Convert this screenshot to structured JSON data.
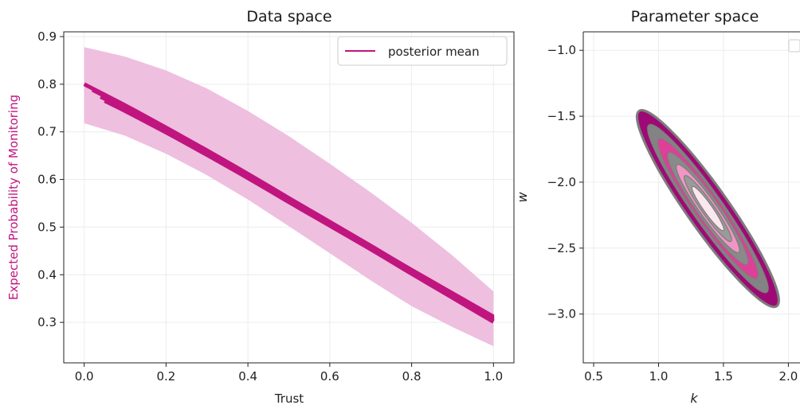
{
  "chart_data": [
    {
      "type": "line",
      "title": "Data space",
      "xlabel": "Trust",
      "ylabel": "Expected Probability of Monitoring",
      "xlim": [
        -0.05,
        1.05
      ],
      "ylim": [
        0.215,
        0.91
      ],
      "xticks": [
        "0.0",
        "0.2",
        "0.4",
        "0.6",
        "0.8",
        "1.0"
      ],
      "yticks": [
        "0.3",
        "0.4",
        "0.5",
        "0.6",
        "0.7",
        "0.8",
        "0.9"
      ],
      "grid": true,
      "legend": {
        "position": "top-right",
        "entries": [
          "posterior mean"
        ]
      },
      "colors": {
        "mean": "#c0157f",
        "band": "#eebfdf",
        "ylabel": "#c0157f"
      },
      "series": [
        {
          "name": "posterior mean",
          "x": [
            0.0,
            0.1,
            0.2,
            0.3,
            0.4,
            0.5,
            0.6,
            0.7,
            0.8,
            0.9,
            1.0
          ],
          "y": [
            0.8,
            0.756,
            0.709,
            0.661,
            0.612,
            0.561,
            0.511,
            0.461,
            0.409,
            0.358,
            0.307
          ]
        }
      ],
      "credible_band": {
        "x": [
          0.0,
          0.1,
          0.2,
          0.3,
          0.4,
          0.5,
          0.6,
          0.7,
          0.8,
          0.9,
          1.0
        ],
        "lower": [
          0.718,
          0.692,
          0.654,
          0.609,
          0.558,
          0.502,
          0.445,
          0.388,
          0.334,
          0.29,
          0.25
        ],
        "upper": [
          0.878,
          0.858,
          0.829,
          0.791,
          0.744,
          0.691,
          0.633,
          0.573,
          0.509,
          0.44,
          0.365
        ]
      },
      "posterior_draws": {
        "x_start": [
          0.0,
          0.02,
          0.04,
          0.05,
          0.06,
          0.07
        ],
        "x_end": 1.0,
        "y_at_0": [
          0.8,
          0.797,
          0.791,
          0.786,
          0.793,
          0.789
        ],
        "y_at_1": [
          0.307,
          0.303,
          0.309,
          0.312,
          0.305,
          0.301
        ]
      }
    },
    {
      "type": "contour",
      "title": "Parameter space",
      "xlabel": "k",
      "ylabel": "w",
      "xlim": [
        0.42,
        2.2
      ],
      "ylim": [
        -3.37,
        -0.86
      ],
      "xticks": [
        "0.5",
        "1.0",
        "1.5",
        "2.0"
      ],
      "yticks": [
        "−1.0",
        "−1.5",
        "−2.0",
        "−2.5",
        "−3.0"
      ],
      "grid": true,
      "legend": {
        "position": "top-right",
        "entries": []
      },
      "density_center": {
        "k": 1.38,
        "w": -2.2
      },
      "contour_levels": [
        {
          "semi_major": 0.98,
          "semi_minor": 0.16,
          "color": "#9e0a75"
        },
        {
          "semi_major": 0.84,
          "semi_minor": 0.118,
          "color": "#838383"
        },
        {
          "semi_major": 0.7,
          "semi_minor": 0.102,
          "color": "#de3f97"
        },
        {
          "semi_major": 0.56,
          "semi_minor": 0.084,
          "color": "#8a8a8a"
        },
        {
          "semi_major": 0.44,
          "semi_minor": 0.066,
          "color": "#f096c4"
        },
        {
          "semi_major": 0.33,
          "semi_minor": 0.049,
          "color": "#9a9a9a"
        },
        {
          "semi_major": 0.22,
          "semi_minor": 0.034,
          "color": "#fde7ef"
        }
      ],
      "colors": {
        "outline": "#7d7d7d"
      }
    }
  ]
}
